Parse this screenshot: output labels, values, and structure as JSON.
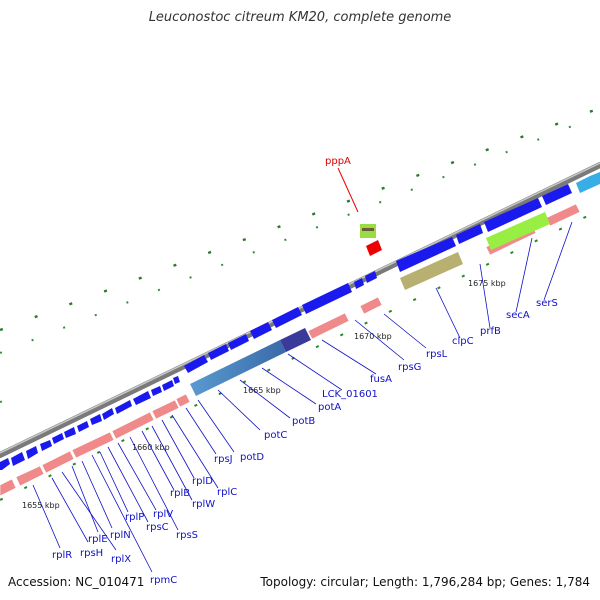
{
  "title": "Leuconostoc citreum KM20, complete genome",
  "footer": {
    "accession": "Accession: NC_010471",
    "summary": "Topology: circular; Length: 1,796,284 bp; Genes: 1,784"
  },
  "colors": {
    "backbone": "#8a8a8a",
    "forward_gene": "#1a1aee",
    "reverse_gene": "#f08a8a",
    "label_blue": "#1010c8",
    "highlight_red": "#ee0000",
    "tick_green": "#2a8a2a"
  },
  "scale_ticks": [
    "1655 kbp",
    "1660 kbp",
    "1665 kbp",
    "1670 kbp",
    "1675 kbp"
  ],
  "highlight_gene": "pppA",
  "gene_labels": [
    "rplR",
    "rpsH",
    "rplX",
    "rplE",
    "rplN",
    "rpmC",
    "rplP",
    "rpsC",
    "rplV",
    "rpsS",
    "rplB",
    "rplW",
    "rplD",
    "rplC",
    "rpsJ",
    "potD",
    "potC",
    "potB",
    "potA",
    "LCK_01601",
    "fusA",
    "rpsG",
    "rpsL",
    "clpC",
    "prfB",
    "secA",
    "serS"
  ]
}
